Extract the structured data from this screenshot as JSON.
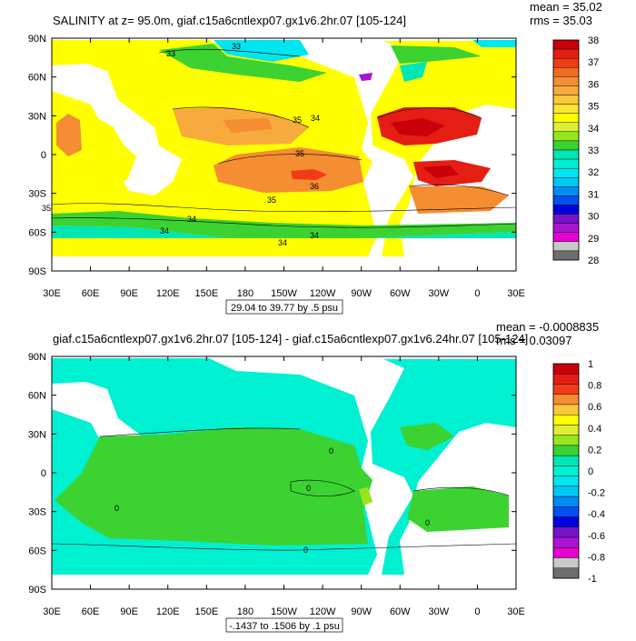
{
  "panels": [
    {
      "title": "SALINITY at z=  95.0m, giaf.c15a6cntlexp07.gx1v6.2hr.07 [105-124]",
      "mean": "mean = 35.02",
      "rms": "rms = 35.03",
      "lat_labels": [
        "90N",
        "60N",
        "30N",
        "0",
        "30S",
        "60S",
        "90S"
      ],
      "lon_labels": [
        "30E",
        "60E",
        "90E",
        "120E",
        "150E",
        "180",
        "150W",
        "120W",
        "90W",
        "60W",
        "30W",
        "0",
        "30E"
      ],
      "range_label": "29.04 to 39.77 by .5 psu",
      "contour_labels": [
        "33",
        "33",
        "35",
        "34",
        "35",
        "36",
        "35",
        "35",
        "34",
        "34",
        "34",
        "34"
      ],
      "colorbar_labels": [
        "38",
        "37",
        "36",
        "35",
        "34",
        "33",
        "32",
        "31",
        "30",
        "29",
        "28"
      ],
      "colorbar_colors": [
        "#c8000a",
        "#e51e14",
        "#f03c14",
        "#f26c1e",
        "#f58d32",
        "#f7ab3c",
        "#f9c83c",
        "#fbe632",
        "#ffff00",
        "#dcf032",
        "#96e61e",
        "#3cd232",
        "#00e6b4",
        "#00f0d2",
        "#00e6f0",
        "#00c8f5",
        "#008cf5",
        "#0050f0",
        "#0000dc",
        "#7814c8",
        "#aa14d2",
        "#e600d2",
        "#c8c8c8",
        "#6e6e6e"
      ]
    },
    {
      "title": "giaf.c15a6cntlexp07.gx1v6.2hr.07 [105-124] - giaf.c15a6cntlexp07.gx1v6.24hr.07 [105-124]",
      "mean": "mean = -0.0008835",
      "rms": "rms = 0.03097",
      "lat_labels": [
        "90N",
        "60N",
        "30N",
        "0",
        "30S",
        "60S",
        "90S"
      ],
      "lon_labels": [
        "30E",
        "60E",
        "90E",
        "120E",
        "150E",
        "180",
        "150W",
        "120W",
        "90W",
        "60W",
        "30W",
        "0",
        "30E"
      ],
      "range_label": "-.1437 to .1506 by .1 psu",
      "contour_labels": [
        "0",
        "0",
        "0",
        "0",
        "0"
      ],
      "colorbar_labels": [
        "1",
        "0.8",
        "0.6",
        "0.4",
        "0.2",
        "0",
        "-0.2",
        "-0.4",
        "-0.6",
        "-0.8",
        "-1"
      ],
      "colorbar_colors": [
        "#c8000a",
        "#e51e14",
        "#f03c14",
        "#f58d32",
        "#f9c83c",
        "#ffff00",
        "#dcf032",
        "#96e61e",
        "#3cd232",
        "#00e6b4",
        "#00f0d2",
        "#00e6f0",
        "#00c8f5",
        "#008cf5",
        "#0050f0",
        "#0000dc",
        "#7814c8",
        "#aa14d2",
        "#e600d2",
        "#c8c8c8",
        "#6e6e6e"
      ]
    }
  ]
}
